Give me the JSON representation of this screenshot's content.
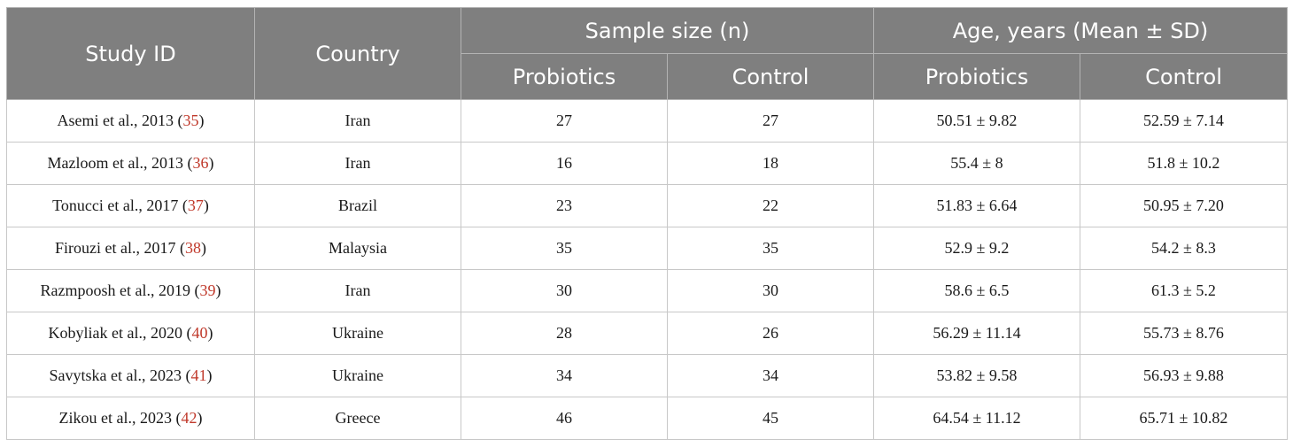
{
  "header": {
    "study_id": "Study ID",
    "country": "Country",
    "sample_size": "Sample size (n)",
    "age": "Age, years (Mean ± SD)",
    "probiotics": "Probiotics",
    "control": "Control"
  },
  "rows": [
    {
      "study": "Asemi et al., 2013 (",
      "ref": "35",
      "close": ")",
      "country": "Iran",
      "n_probiotics": "27",
      "n_control": "27",
      "age_probiotics": "50.51 ± 9.82",
      "age_control": "52.59 ± 7.14"
    },
    {
      "study": "Mazloom et al., 2013 (",
      "ref": "36",
      "close": ")",
      "country": "Iran",
      "n_probiotics": "16",
      "n_control": "18",
      "age_probiotics": "55.4 ± 8",
      "age_control": "51.8 ± 10.2"
    },
    {
      "study": "Tonucci et al., 2017 (",
      "ref": "37",
      "close": ")",
      "country": "Brazil",
      "n_probiotics": "23",
      "n_control": "22",
      "age_probiotics": "51.83 ± 6.64",
      "age_control": "50.95 ± 7.20"
    },
    {
      "study": "Firouzi et al., 2017 (",
      "ref": "38",
      "close": ")",
      "country": "Malaysia",
      "n_probiotics": "35",
      "n_control": "35",
      "age_probiotics": "52.9 ± 9.2",
      "age_control": "54.2 ± 8.3"
    },
    {
      "study": "Razmpoosh et al., 2019 (",
      "ref": "39",
      "close": ")",
      "country": "Iran",
      "n_probiotics": "30",
      "n_control": "30",
      "age_probiotics": "58.6 ± 6.5",
      "age_control": "61.3 ± 5.2"
    },
    {
      "study": "Kobyliak et al., 2020 (",
      "ref": "40",
      "close": ")",
      "country": "Ukraine",
      "n_probiotics": "28",
      "n_control": "26",
      "age_probiotics": "56.29 ± 11.14",
      "age_control": "55.73 ± 8.76"
    },
    {
      "study": "Savytska et al., 2023 (",
      "ref": "41",
      "close": ")",
      "country": "Ukraine",
      "n_probiotics": "34",
      "n_control": "34",
      "age_probiotics": "53.82 ± 9.58",
      "age_control": "56.93 ± 9.88"
    },
    {
      "study": "Zikou et al., 2023 (",
      "ref": "42",
      "close": ")",
      "country": "Greece",
      "n_probiotics": "46",
      "n_control": "45",
      "age_probiotics": "64.54 ± 11.12",
      "age_control": "65.71 ± 10.82"
    }
  ],
  "colors": {
    "header_bg": "#7f7f7f",
    "header_text": "#ffffff",
    "reference_link": "#c0392b",
    "border": "#c8c8c8"
  }
}
